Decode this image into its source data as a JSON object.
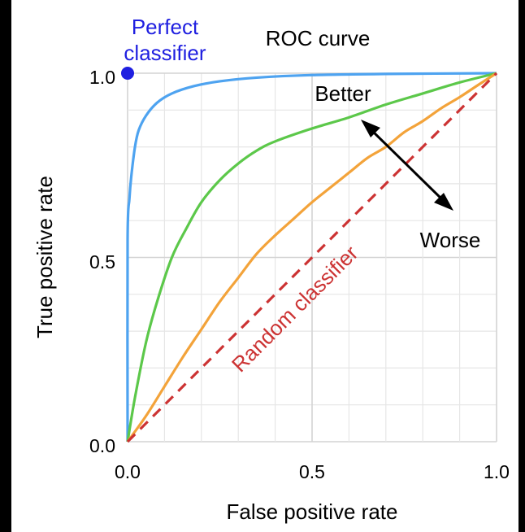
{
  "chart_data": {
    "type": "line",
    "title": "ROC curve",
    "xlabel": "False positive rate",
    "ylabel": "True positive rate",
    "xlim": [
      0,
      1
    ],
    "ylim": [
      0,
      1
    ],
    "x_ticks": [
      "0.0",
      "0.5",
      "1.0"
    ],
    "y_ticks": [
      "0.0",
      "0.5",
      "1.0"
    ],
    "grid": true,
    "grid_step": 0.1,
    "series": [
      {
        "color": "#4ea3f0",
        "points": [
          [
            0,
            0
          ],
          [
            0.0,
            0.55
          ],
          [
            0.005,
            0.66
          ],
          [
            0.01,
            0.72
          ],
          [
            0.02,
            0.8
          ],
          [
            0.03,
            0.845
          ],
          [
            0.05,
            0.885
          ],
          [
            0.08,
            0.92
          ],
          [
            0.12,
            0.945
          ],
          [
            0.18,
            0.965
          ],
          [
            0.25,
            0.978
          ],
          [
            0.35,
            0.988
          ],
          [
            0.5,
            0.995
          ],
          [
            0.7,
            0.998
          ],
          [
            1,
            1
          ]
        ]
      },
      {
        "color": "#5cc84a",
        "points": [
          [
            0,
            0
          ],
          [
            0.02,
            0.12
          ],
          [
            0.05,
            0.27
          ],
          [
            0.08,
            0.38
          ],
          [
            0.12,
            0.5
          ],
          [
            0.16,
            0.58
          ],
          [
            0.2,
            0.65
          ],
          [
            0.25,
            0.71
          ],
          [
            0.3,
            0.755
          ],
          [
            0.35,
            0.79
          ],
          [
            0.4,
            0.815
          ],
          [
            0.5,
            0.85
          ],
          [
            0.6,
            0.88
          ],
          [
            0.7,
            0.915
          ],
          [
            0.8,
            0.945
          ],
          [
            0.9,
            0.975
          ],
          [
            1,
            1
          ]
        ]
      },
      {
        "color": "#f3a33a",
        "points": [
          [
            0,
            0
          ],
          [
            0.05,
            0.07
          ],
          [
            0.1,
            0.15
          ],
          [
            0.15,
            0.23
          ],
          [
            0.2,
            0.305
          ],
          [
            0.25,
            0.38
          ],
          [
            0.3,
            0.445
          ],
          [
            0.35,
            0.51
          ],
          [
            0.4,
            0.56
          ],
          [
            0.45,
            0.605
          ],
          [
            0.5,
            0.65
          ],
          [
            0.55,
            0.69
          ],
          [
            0.6,
            0.73
          ],
          [
            0.65,
            0.77
          ],
          [
            0.7,
            0.8
          ],
          [
            0.75,
            0.84
          ],
          [
            0.8,
            0.87
          ],
          [
            0.85,
            0.905
          ],
          [
            0.9,
            0.935
          ],
          [
            0.95,
            0.968
          ],
          [
            1,
            1
          ]
        ]
      },
      {
        "color": "#cc3333",
        "dashed": true,
        "points": [
          [
            0,
            0
          ],
          [
            1,
            1
          ]
        ]
      }
    ],
    "annotations": {
      "perfect_label_line1": "Perfect",
      "perfect_label_line2": "classifier",
      "perfect_point": [
        0,
        1
      ],
      "perfect_color": "#1f1fe0",
      "better": "Better",
      "worse": "Worse",
      "random": "Random classifier",
      "random_color": "#cc3333"
    }
  }
}
